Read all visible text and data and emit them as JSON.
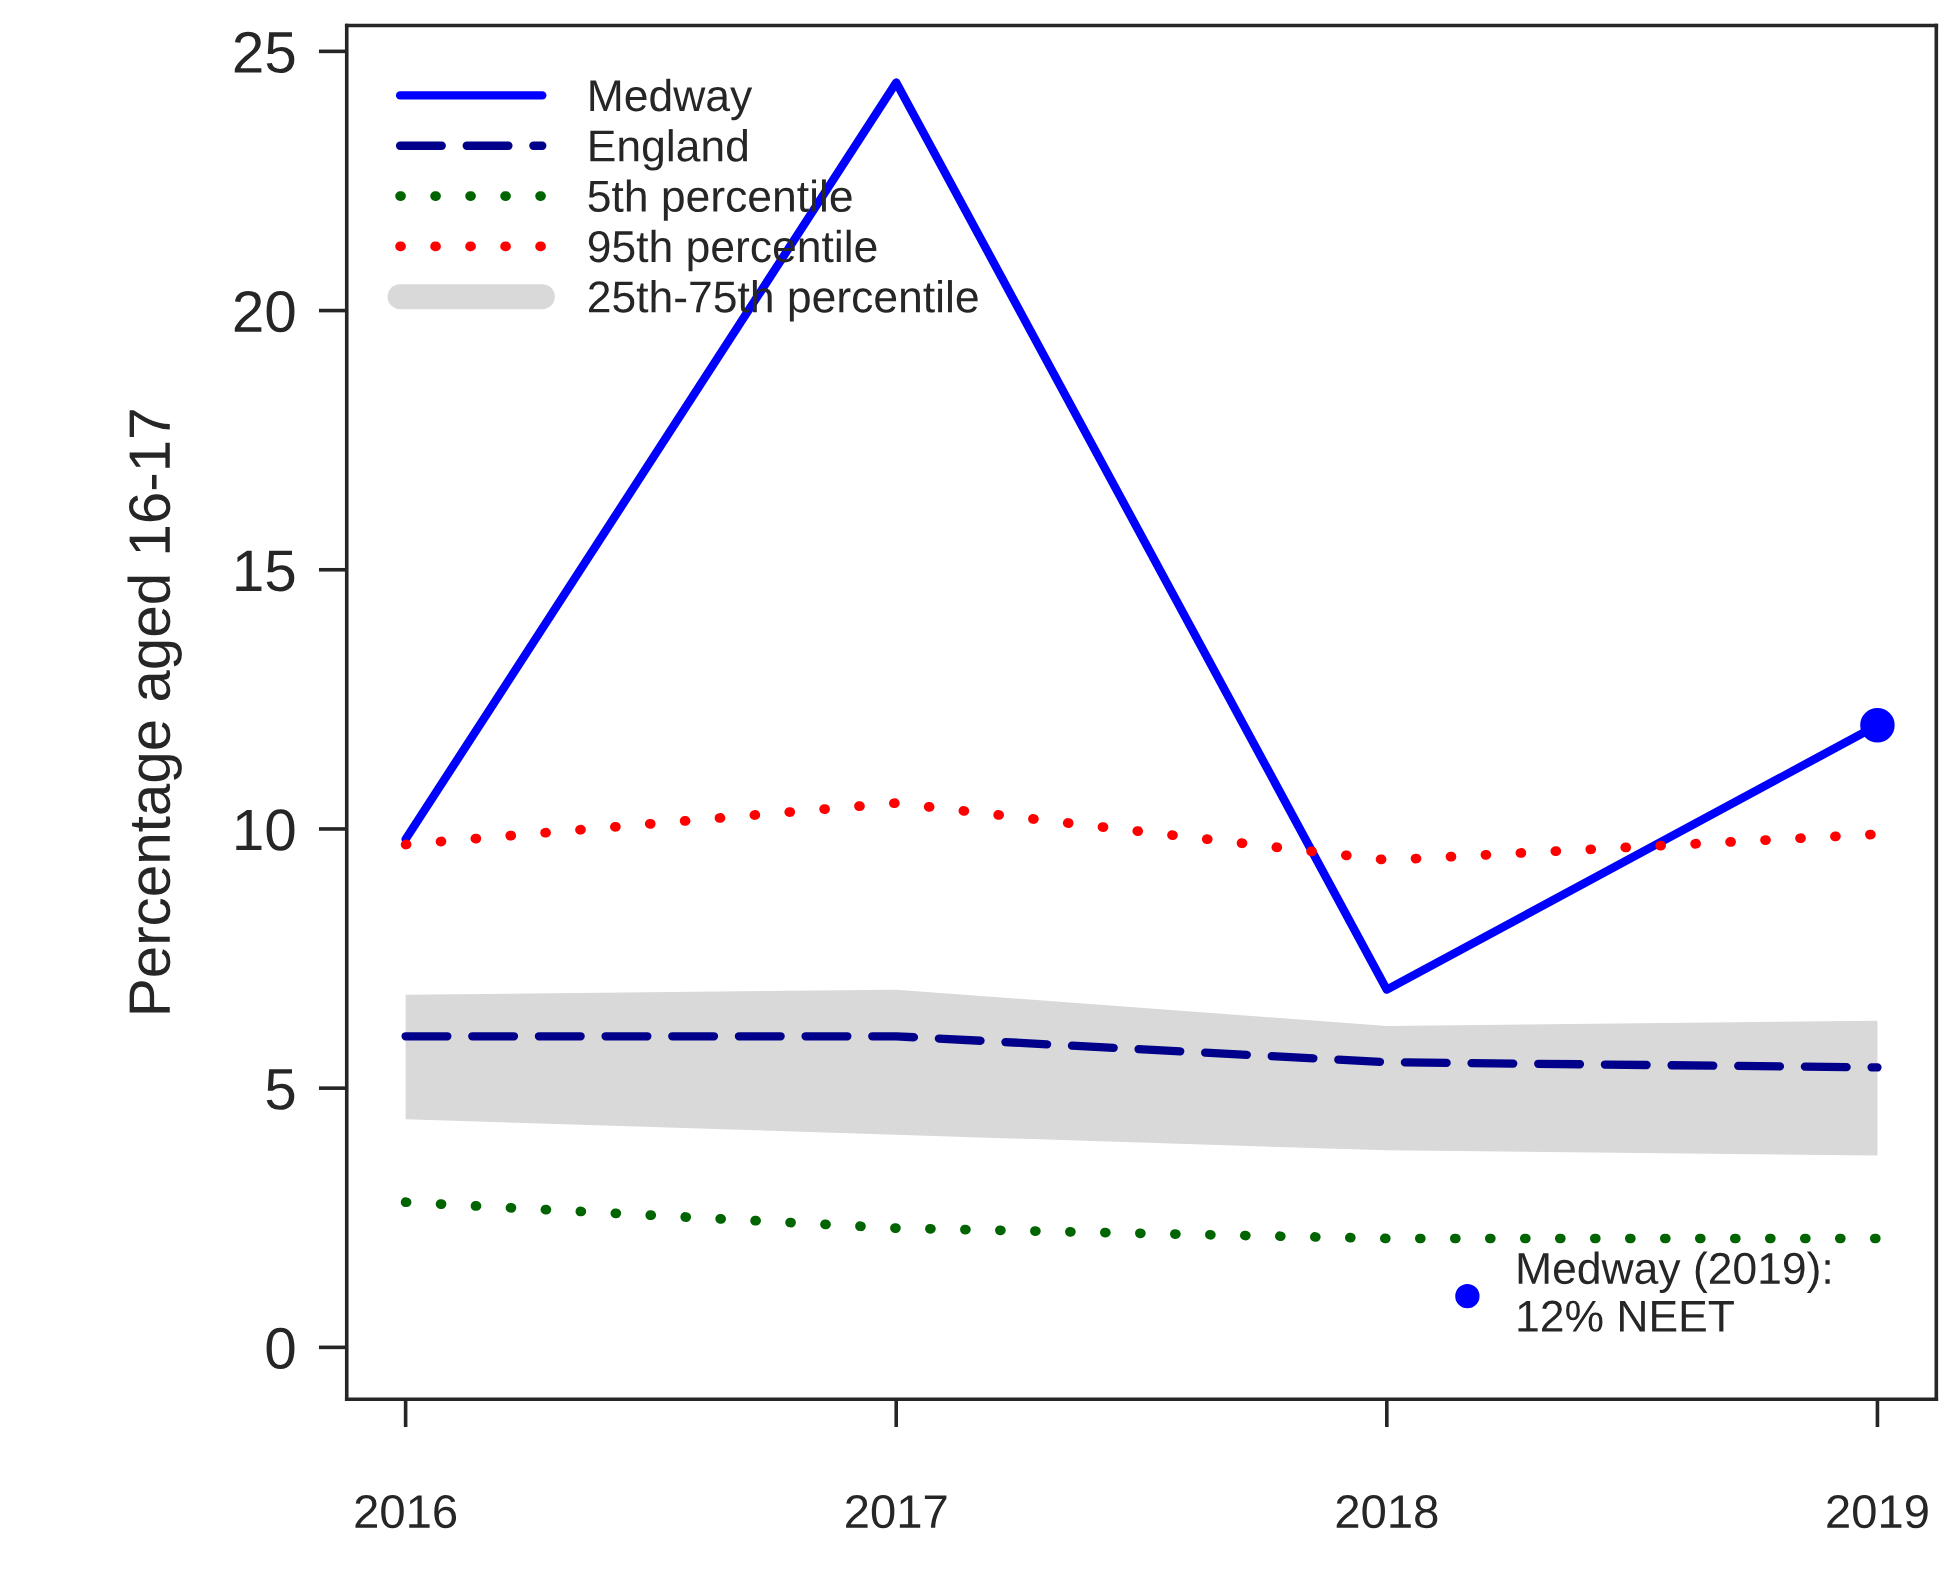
{
  "chart_data": {
    "type": "line",
    "ylabel": "Percentage aged 16-17",
    "x": [
      2016,
      2017,
      2018,
      2019
    ],
    "xlim": [
      2015.88,
      2019.12
    ],
    "xticks": [
      2016,
      2017,
      2018,
      2019
    ],
    "ylim": [
      -1,
      25.5
    ],
    "yticks": [
      0,
      5,
      10,
      15,
      20,
      25
    ],
    "legend": "top left",
    "grid": false,
    "series": [
      {
        "name": "Medway",
        "color": "#0000ff",
        "line_style": "solid",
        "values": [
          9.8,
          24.4,
          6.9,
          12.0
        ]
      },
      {
        "name": "England",
        "color": "#00008b",
        "line_style": "dashed",
        "values": [
          6.0,
          6.0,
          5.5,
          5.4
        ]
      },
      {
        "name": "5th percentile",
        "color": "#006400",
        "line_style": "dotted",
        "values": [
          2.8,
          2.3,
          2.1,
          2.1
        ]
      },
      {
        "name": "95th percentile",
        "color": "#ff0000",
        "line_style": "dotted",
        "values": [
          9.7,
          10.5,
          9.4,
          9.9
        ]
      },
      {
        "name": "25th-75th percentile",
        "type": "area",
        "color": "#d9d9d9",
        "values": [
          null,
          null,
          null,
          null
        ],
        "lower": [
          4.4,
          4.1,
          3.8,
          3.7
        ],
        "upper": [
          6.8,
          6.9,
          6.2,
          6.3
        ]
      },
      {
        "type": "scatter",
        "color": "#0000ff",
        "marker": "circle",
        "x": [
          2019
        ],
        "values": [
          12.0
        ]
      }
    ],
    "annotations": [
      "Medway (2019):\n12% NEET"
    ]
  }
}
